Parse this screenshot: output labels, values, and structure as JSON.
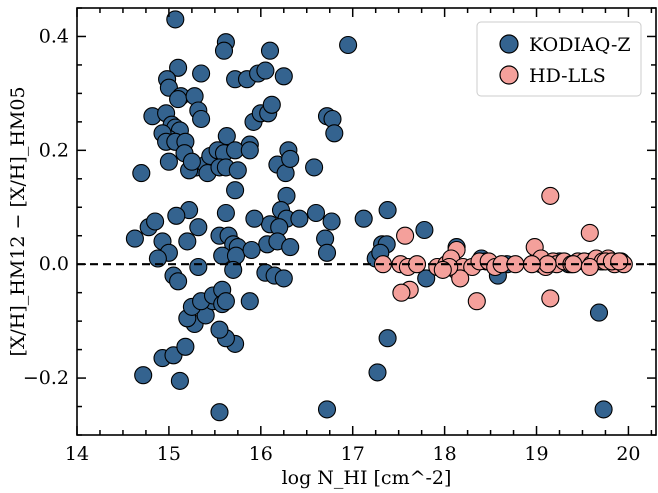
{
  "chart_data": {
    "type": "scatter",
    "xlabel": "log N_HI [cm^-2]",
    "ylabel": "[X/H]_HM12 − [X/H]_HM05",
    "xlim": [
      14.0,
      20.3
    ],
    "ylim": [
      -0.3,
      0.45
    ],
    "x_ticks": [
      14,
      15,
      16,
      17,
      18,
      19,
      20
    ],
    "x_tick_labels": [
      "14",
      "15",
      "16",
      "17",
      "18",
      "19",
      "20"
    ],
    "y_ticks": [
      -0.2,
      0.0,
      0.2,
      0.4
    ],
    "y_tick_labels": [
      "−0.2",
      "0.0",
      "0.2",
      "0.4"
    ],
    "reference_line": {
      "y": 0.0,
      "style": "dashed"
    },
    "grid": false,
    "legend_position": "top-right",
    "series": [
      {
        "name": "KODIAQ-Z",
        "color": "#34638f",
        "points": [
          [
            15.07,
            0.43
          ],
          [
            15.62,
            0.39
          ],
          [
            15.6,
            0.375
          ],
          [
            16.1,
            0.375
          ],
          [
            16.95,
            0.385
          ],
          [
            15.1,
            0.345
          ],
          [
            14.98,
            0.325
          ],
          [
            15.35,
            0.335
          ],
          [
            15.0,
            0.31
          ],
          [
            15.13,
            0.295
          ],
          [
            15.1,
            0.29
          ],
          [
            15.28,
            0.295
          ],
          [
            15.72,
            0.325
          ],
          [
            15.85,
            0.325
          ],
          [
            15.97,
            0.335
          ],
          [
            16.05,
            0.34
          ],
          [
            16.25,
            0.33
          ],
          [
            14.82,
            0.26
          ],
          [
            14.97,
            0.265
          ],
          [
            15.32,
            0.27
          ],
          [
            15.35,
            0.255
          ],
          [
            15.03,
            0.245
          ],
          [
            15.07,
            0.24
          ],
          [
            15.12,
            0.235
          ],
          [
            15.0,
            0.22
          ],
          [
            14.93,
            0.23
          ],
          [
            14.97,
            0.215
          ],
          [
            15.07,
            0.215
          ],
          [
            15.18,
            0.215
          ],
          [
            15.63,
            0.225
          ],
          [
            15.88,
            0.21
          ],
          [
            15.92,
            0.25
          ],
          [
            16.0,
            0.265
          ],
          [
            16.08,
            0.265
          ],
          [
            16.12,
            0.28
          ],
          [
            16.72,
            0.26
          ],
          [
            16.78,
            0.255
          ],
          [
            16.8,
            0.23
          ],
          [
            16.3,
            0.2
          ],
          [
            15.17,
            0.195
          ],
          [
            15.3,
            0.17
          ],
          [
            15.4,
            0.175
          ],
          [
            15.45,
            0.19
          ],
          [
            15.53,
            0.2
          ],
          [
            15.6,
            0.195
          ],
          [
            15.72,
            0.2
          ],
          [
            15.88,
            0.2
          ],
          [
            15.22,
            0.165
          ],
          [
            15.25,
            0.18
          ],
          [
            15.42,
            0.16
          ],
          [
            15.55,
            0.17
          ],
          [
            15.62,
            0.17
          ],
          [
            15.75,
            0.165
          ],
          [
            16.18,
            0.175
          ],
          [
            16.27,
            0.16
          ],
          [
            16.32,
            0.185
          ],
          [
            16.58,
            0.17
          ],
          [
            15.0,
            0.18
          ],
          [
            14.7,
            0.16
          ],
          [
            15.72,
            0.13
          ],
          [
            16.28,
            0.12
          ],
          [
            15.22,
            0.095
          ],
          [
            15.55,
            0.05
          ],
          [
            15.62,
            0.09
          ],
          [
            15.08,
            0.085
          ],
          [
            16.22,
            0.095
          ],
          [
            16.28,
            0.08
          ],
          [
            16.42,
            0.08
          ],
          [
            16.6,
            0.09
          ],
          [
            16.77,
            0.075
          ],
          [
            16.1,
            0.07
          ],
          [
            16.2,
            0.065
          ],
          [
            14.78,
            0.065
          ],
          [
            14.85,
            0.075
          ],
          [
            15.32,
            0.065
          ],
          [
            15.93,
            0.08
          ],
          [
            15.65,
            0.05
          ],
          [
            15.7,
            0.035
          ],
          [
            15.75,
            0.03
          ],
          [
            16.07,
            0.035
          ],
          [
            16.18,
            0.04
          ],
          [
            16.32,
            0.03
          ],
          [
            16.7,
            0.045
          ],
          [
            14.63,
            0.045
          ],
          [
            14.93,
            0.04
          ],
          [
            15.0,
            0.02
          ],
          [
            14.88,
            0.01
          ],
          [
            15.2,
            0.04
          ],
          [
            15.58,
            0.015
          ],
          [
            15.73,
            0.015
          ],
          [
            15.9,
            0.025
          ],
          [
            16.72,
            0.02
          ],
          [
            17.12,
            0.08
          ],
          [
            17.32,
            0.035
          ],
          [
            17.37,
            0.035
          ],
          [
            17.38,
            0.095
          ],
          [
            17.25,
            0.01
          ],
          [
            17.3,
            0.02
          ],
          [
            17.78,
            0.06
          ],
          [
            18.13,
            0.03
          ],
          [
            18.4,
            0.01
          ],
          [
            18.58,
            -0.01
          ],
          [
            18.68,
            0.0
          ],
          [
            18.45,
            0.005
          ],
          [
            19.0,
            0.005
          ],
          [
            19.05,
            0.0
          ],
          [
            19.25,
            0.005
          ],
          [
            19.35,
            0.0
          ],
          [
            19.6,
            0.005
          ],
          [
            19.7,
            0.005
          ],
          [
            19.82,
            0.005
          ],
          [
            19.92,
            0.005
          ],
          [
            17.8,
            -0.025
          ],
          [
            18.58,
            -0.02
          ],
          [
            17.38,
            -0.13
          ],
          [
            17.27,
            -0.19
          ],
          [
            19.68,
            -0.085
          ],
          [
            19.73,
            -0.255
          ],
          [
            16.72,
            -0.255
          ],
          [
            15.55,
            -0.26
          ],
          [
            14.72,
            -0.195
          ],
          [
            15.12,
            -0.205
          ],
          [
            14.93,
            -0.165
          ],
          [
            15.05,
            -0.16
          ],
          [
            15.18,
            -0.145
          ],
          [
            15.28,
            -0.105
          ],
          [
            15.2,
            -0.095
          ],
          [
            15.4,
            -0.09
          ],
          [
            15.48,
            -0.065
          ],
          [
            15.25,
            -0.075
          ],
          [
            15.35,
            -0.065
          ],
          [
            15.48,
            -0.055
          ],
          [
            15.58,
            -0.045
          ],
          [
            15.58,
            -0.07
          ],
          [
            15.62,
            -0.065
          ],
          [
            15.72,
            -0.14
          ],
          [
            15.62,
            -0.13
          ],
          [
            15.88,
            -0.065
          ],
          [
            15.32,
            -0.005
          ],
          [
            15.05,
            -0.02
          ],
          [
            15.1,
            -0.03
          ],
          [
            15.7,
            -0.01
          ],
          [
            16.05,
            -0.015
          ],
          [
            16.15,
            -0.02
          ],
          [
            16.25,
            -0.025
          ],
          [
            15.55,
            -0.115
          ]
        ]
      },
      {
        "name": "HD-LLS",
        "color": "#f4a09b",
        "points": [
          [
            19.15,
            0.12
          ],
          [
            19.58,
            0.055
          ],
          [
            17.57,
            0.05
          ],
          [
            18.98,
            0.03
          ],
          [
            18.13,
            0.025
          ],
          [
            17.33,
            0.0
          ],
          [
            17.52,
            0.0
          ],
          [
            17.6,
            -0.005
          ],
          [
            17.7,
            0.0
          ],
          [
            17.92,
            -0.005
          ],
          [
            18.02,
            0.0
          ],
          [
            18.07,
            0.01
          ],
          [
            18.12,
            -0.01
          ],
          [
            18.2,
            -0.005
          ],
          [
            18.3,
            -0.005
          ],
          [
            18.38,
            0.005
          ],
          [
            18.48,
            0.005
          ],
          [
            18.55,
            -0.005
          ],
          [
            18.62,
            0.0
          ],
          [
            18.77,
            0.0
          ],
          [
            19.05,
            0.01
          ],
          [
            19.1,
            -0.005
          ],
          [
            19.18,
            0.005
          ],
          [
            19.22,
            0.0
          ],
          [
            19.3,
            0.005
          ],
          [
            19.38,
            0.0
          ],
          [
            19.45,
            0.005
          ],
          [
            19.52,
            0.005
          ],
          [
            19.6,
            0.0
          ],
          [
            19.65,
            0.01
          ],
          [
            19.72,
            0.005
          ],
          [
            19.78,
            0.01
          ],
          [
            19.85,
            0.0
          ],
          [
            19.9,
            0.005
          ],
          [
            19.95,
            0.0
          ],
          [
            18.17,
            -0.025
          ],
          [
            18.05,
            -0.005
          ],
          [
            17.98,
            -0.01
          ],
          [
            17.62,
            -0.045
          ],
          [
            17.53,
            -0.05
          ],
          [
            18.35,
            -0.065
          ],
          [
            19.15,
            -0.06
          ],
          [
            19.4,
            0.0
          ],
          [
            19.58,
            -0.005
          ],
          [
            19.75,
            0.005
          ],
          [
            19.82,
            0.005
          ],
          [
            19.9,
            0.005
          ],
          [
            19.12,
            0.0
          ],
          [
            18.95,
            0.0
          ]
        ]
      }
    ]
  }
}
